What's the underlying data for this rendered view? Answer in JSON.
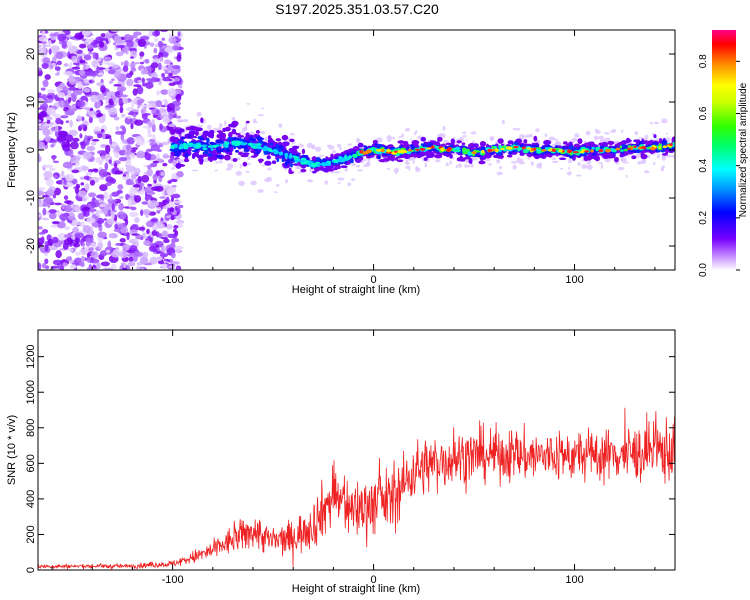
{
  "title": "S197.2025.351.03.57.C20",
  "chart_data": [
    {
      "type": "heatmap",
      "xlabel": "Height of straight line (km)",
      "ylabel": "Frequency (Hz)",
      "xlim": [
        -167,
        150
      ],
      "ylim": [
        -25,
        25
      ],
      "x_ticks": [
        -100,
        0,
        100
      ],
      "x_tick_labels": [
        "-100",
        "0",
        "100"
      ],
      "y_ticks": [
        -20,
        -10,
        0,
        10,
        20
      ],
      "y_tick_labels": [
        "-20",
        "-10",
        "0",
        "10",
        "20"
      ],
      "colorbar": {
        "label": "Normalized spectral amplitude",
        "range": [
          0,
          0.92
        ],
        "ticks": [
          0,
          0.2,
          0.4,
          0.6,
          0.8
        ],
        "tick_labels": [
          "0.0",
          "0.2",
          "0.4",
          "0.6",
          "0.8"
        ],
        "colormap": [
          "#ffffff",
          "#7700ff",
          "#0000ff",
          "#00ffff",
          "#00ff00",
          "#ffff00",
          "#ff8800",
          "#ff0000",
          "#ff0088"
        ]
      },
      "ridge_center_hz": {
        "x": [
          -100,
          -90,
          -80,
          -70,
          -60,
          -50,
          -40,
          -30,
          -20,
          -10,
          0,
          10,
          20,
          30,
          40,
          50,
          60,
          70,
          80,
          90,
          100,
          110,
          120,
          130,
          140,
          150
        ],
        "y": [
          0.5,
          1,
          0.5,
          1.5,
          1,
          0,
          -1.5,
          -3,
          -2.5,
          -1,
          0,
          -0.5,
          0,
          0.5,
          0,
          -0.5,
          0,
          0.5,
          0,
          0,
          -0.5,
          0,
          0,
          0.5,
          0.5,
          1
        ]
      },
      "noise_region_end_km": -100
    },
    {
      "type": "line",
      "xlabel": "Height of straight line (km)",
      "ylabel": "SNR (10 * v/v)",
      "xlim": [
        -167,
        150
      ],
      "ylim": [
        0,
        1350
      ],
      "x_ticks": [
        -100,
        0,
        100
      ],
      "x_tick_labels": [
        "-100",
        "0",
        "100"
      ],
      "y_ticks": [
        0,
        200,
        400,
        600,
        800,
        1000,
        1200
      ],
      "y_tick_labels": [
        "0",
        "200",
        "400",
        "600",
        "800",
        "1000",
        "1200"
      ],
      "color": "#ee2222",
      "envelope": {
        "x": [
          -167,
          -120,
          -100,
          -90,
          -80,
          -70,
          -60,
          -50,
          -40,
          -30,
          -20,
          -10,
          0,
          10,
          20,
          30,
          40,
          60,
          80,
          100,
          120,
          140,
          150
        ],
        "mean": [
          20,
          22,
          35,
          70,
          110,
          170,
          220,
          160,
          180,
          260,
          420,
          330,
          380,
          400,
          560,
          600,
          630,
          650,
          640,
          640,
          650,
          660,
          680
        ],
        "spread": [
          12,
          14,
          20,
          40,
          60,
          90,
          110,
          90,
          110,
          150,
          200,
          180,
          200,
          180,
          180,
          170,
          170,
          160,
          160,
          150,
          160,
          180,
          220
        ]
      }
    }
  ]
}
